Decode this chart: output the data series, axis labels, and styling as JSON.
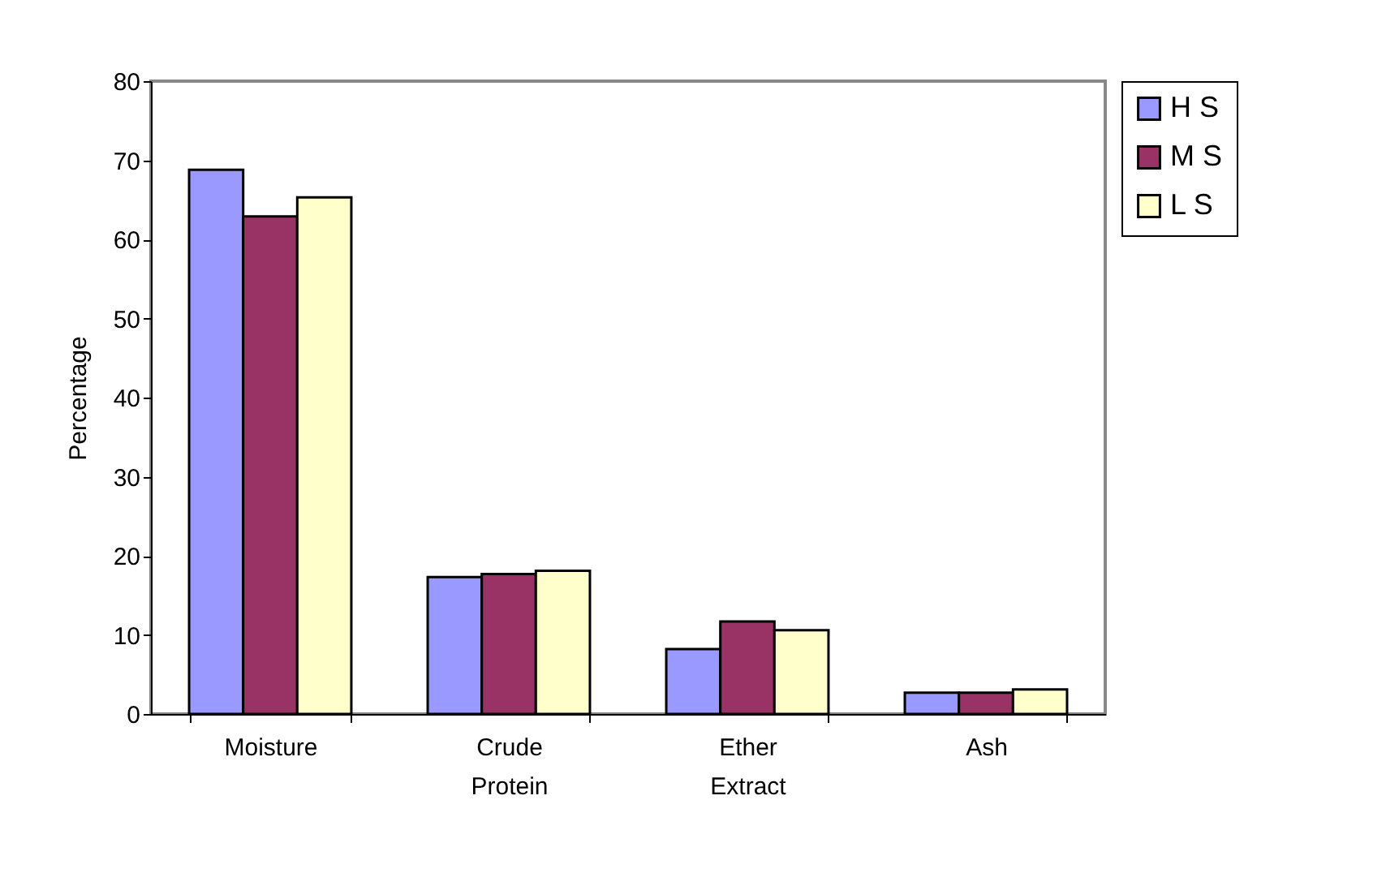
{
  "chart_data": {
    "type": "bar",
    "ylabel": "Percentage",
    "categories": [
      "Moisture",
      "Crude Protein",
      "Ether Extract",
      "Ash"
    ],
    "series": [
      {
        "name": "H S",
        "color": "#9999ff",
        "values": [
          68.8,
          17.3,
          8.2,
          2.7
        ]
      },
      {
        "name": "M S",
        "color": "#993366",
        "values": [
          62.9,
          17.7,
          11.7,
          2.7
        ]
      },
      {
        "name": "L S",
        "color": "#ffffcc",
        "values": [
          65.3,
          18.1,
          10.6,
          3.1
        ]
      }
    ],
    "ylim": [
      0,
      80
    ],
    "yticks": [
      0,
      10,
      20,
      30,
      40,
      50,
      60,
      70,
      80
    ],
    "grid": false,
    "legend": "right"
  }
}
